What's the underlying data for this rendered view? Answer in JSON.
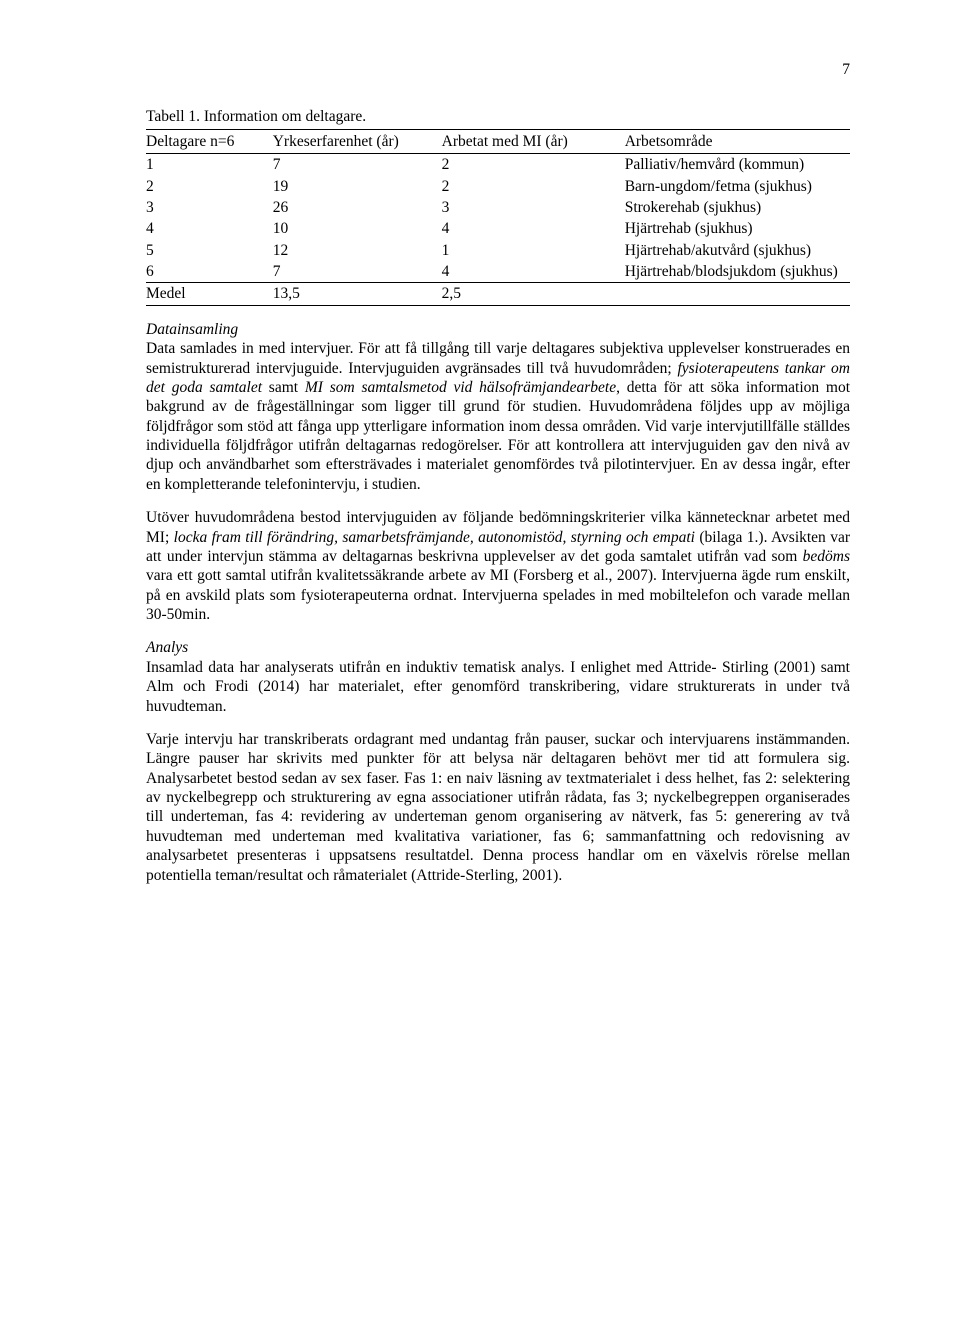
{
  "page_number": "7",
  "table": {
    "caption": "Tabell 1. Information om deltagare.",
    "columns": [
      "Deltagare n=6",
      "Yrkeserfarenhet (år)",
      "Arbetat med MI (år)",
      "Arbetsområde"
    ],
    "rows": [
      [
        "1",
        "7",
        "2",
        "Palliativ/hemvård (kommun)"
      ],
      [
        "2",
        "19",
        "2",
        "Barn-ungdom/fetma (sjukhus)"
      ],
      [
        "3",
        "26",
        "3",
        "Strokerehab (sjukhus)"
      ],
      [
        "4",
        "10",
        "4",
        "Hjärtrehab (sjukhus)"
      ],
      [
        "5",
        "12",
        "1",
        "Hjärtrehab/akutvård (sjukhus)"
      ],
      [
        "6",
        "7",
        "4",
        "Hjärtrehab/blodsjukdom (sjukhus)"
      ]
    ],
    "footer_row": [
      "Medel",
      "13,5",
      "2,5",
      ""
    ]
  },
  "section1": {
    "heading": "Datainsamling",
    "p1a": "Data samlades in med intervjuer. För att få tillgång till varje deltagares subjektiva upplevelser konstruerades en semistrukturerad intervjuguide. Intervjuguiden avgränsades till två huvudområden; ",
    "p1b": "fysioterapeutens tankar om det goda samtalet",
    "p1c": " samt ",
    "p1d": "MI som samtalsmetod vid hälsofrämjandearbete",
    "p1e": ", detta för att söka information mot bakgrund av de frågeställningar som ligger till grund för studien. Huvudområdena följdes upp av möjliga följdfrågor som stöd att fånga upp ytterligare information inom dessa områden. Vid varje intervjutillfälle ställdes individuella följdfrågor utifrån deltagarnas redogörelser. För att kontrollera att intervjuguiden gav den nivå av djup och användbarhet som eftersträvades i materialet genomfördes två pilotintervjuer. En av dessa ingår, efter en kompletterande telefonintervju, i studien.",
    "p2a": "Utöver huvudområdena bestod intervjuguiden av följande bedömningskriterier vilka kännetecknar arbetet med MI; ",
    "p2b": "locka fram till förändring, samarbetsfrämjande, autonomistöd, styrning och empati",
    "p2c": " (bilaga 1.). Avsikten var att under intervjun stämma av deltagarnas beskrivna upplevelser av det goda samtalet utifrån vad som ",
    "p2d": "bedöms",
    "p2e": " vara ett gott samtal utifrån kvalitetssäkrande arbete av MI (Forsberg et al., 2007). Intervjuerna ägde rum enskilt, på en avskild plats som fysioterapeuterna ordnat. Intervjuerna spelades in med mobiltelefon och varade mellan 30-50min."
  },
  "section2": {
    "heading": "Analys",
    "p1": "Insamlad data har analyserats utifrån en induktiv tematisk analys. I enlighet med Attride- Stirling (2001) samt Alm och Frodi (2014) har materialet, efter genomförd transkribering, vidare strukturerats in under två huvudteman.",
    "p2": "Varje intervju har transkriberats ordagrant med undantag från pauser, suckar och intervjuarens instämmanden. Längre pauser har skrivits med punkter för att belysa när deltagaren behövt mer tid att formulera sig. Analysarbetet bestod sedan av sex faser. Fas 1: en naiv läsning av textmaterialet i dess helhet, fas 2: selektering av nyckelbegrepp och strukturering av egna associationer utifrån rådata, fas 3; nyckelbegreppen organiserades till underteman, fas 4: revidering av underteman genom organisering av nätverk, fas 5: generering av två huvudteman med underteman med kvalitativa variationer, fas 6; sammanfattning och redovisning av analysarbetet presenteras i uppsatsens resultatdel. Denna process handlar om en växelvis rörelse mellan potentiella teman/resultat och råmaterialet (Attride-Sterling, 2001)."
  }
}
